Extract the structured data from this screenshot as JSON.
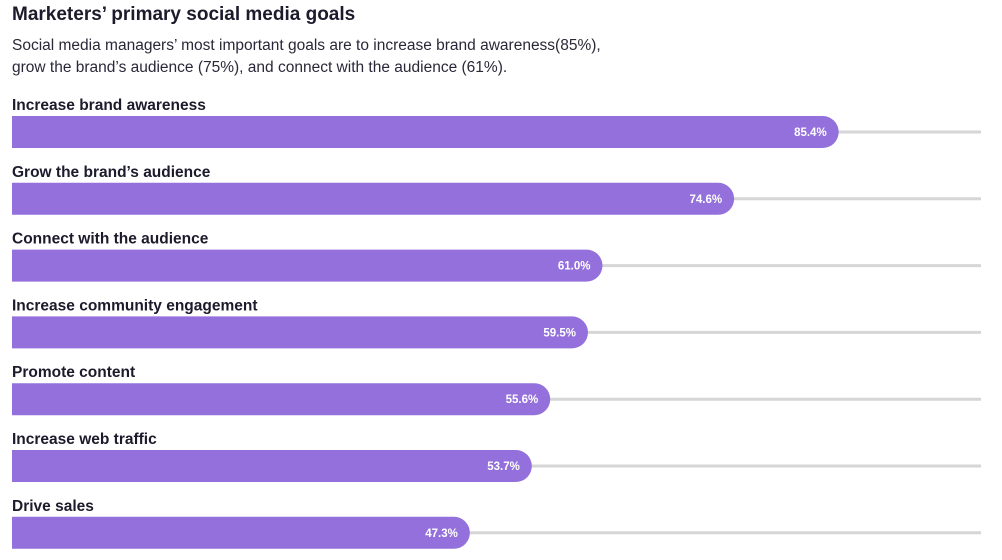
{
  "header": {
    "title": "Marketers’ primary social media goals",
    "subtitle_line1": "Social media managers’ most important goals are to increase brand awareness(85%),",
    "subtitle_line2": "grow the brand’s audience (75%), and connect with the audience (61%)."
  },
  "colors": {
    "bar": "#9370db",
    "track": "#d6d6d6",
    "text": "#1c1a2b"
  },
  "chart_data": {
    "type": "bar",
    "orientation": "horizontal",
    "title": "Marketers’ primary social media goals",
    "categories": [
      "Increase brand awareness",
      "Grow the brand’s audience",
      "Connect with the audience",
      "Increase community engagement",
      "Promote content",
      "Increase web traffic",
      "Drive sales"
    ],
    "values": [
      85.4,
      74.6,
      61.0,
      59.5,
      55.6,
      53.7,
      47.3
    ],
    "value_labels": [
      "85.4%",
      "74.6%",
      "61.0%",
      "59.5%",
      "55.6%",
      "53.7%",
      "47.3%"
    ],
    "xlim": [
      0,
      100
    ],
    "grid": false,
    "legend": "none"
  }
}
